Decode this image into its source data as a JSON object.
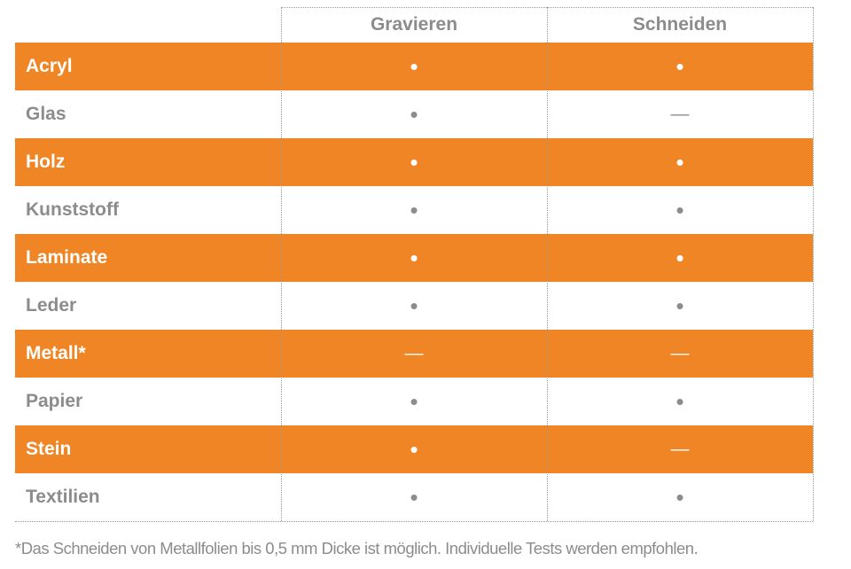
{
  "table": {
    "header": [
      "Gravieren",
      "Schneiden"
    ],
    "rows": [
      [
        "Acryl",
        "•",
        "•"
      ],
      [
        "Glas",
        "•",
        "—"
      ],
      [
        "Holz",
        "•",
        "•"
      ],
      [
        "Kunststoff",
        "•",
        "•"
      ],
      [
        "Laminate",
        "•",
        "•"
      ],
      [
        "Leder",
        "•",
        "•"
      ],
      [
        "Metall*",
        "—",
        "—"
      ],
      [
        "Papier",
        "•",
        "•"
      ],
      [
        "Stein",
        "•",
        "—"
      ],
      [
        "Textilien",
        "•",
        "•"
      ]
    ]
  },
  "footnote": "*Das Schneiden von Metallfolien bis 0,5 mm Dicke ist möglich. Individuelle Tests werden empfohlen."
}
